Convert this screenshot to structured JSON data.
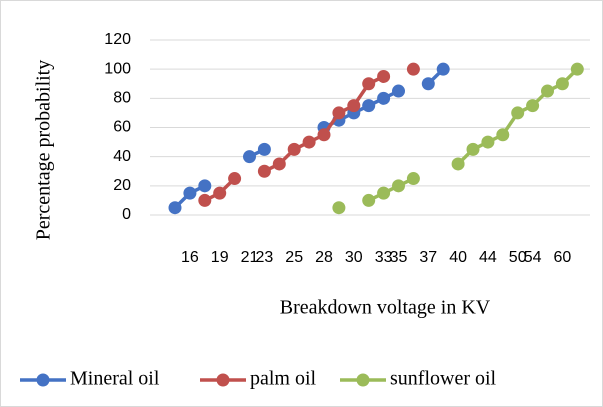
{
  "chart_data": {
    "type": "line",
    "x_label": "Breakdown voltage in KV",
    "y_label": "Percentage probability",
    "categories": [
      null,
      "16",
      null,
      "19",
      null,
      "21",
      "23",
      null,
      "25",
      null,
      "28",
      null,
      "30",
      null,
      "33",
      "35",
      null,
      "37",
      null,
      "40",
      null,
      "44",
      null,
      "50",
      "54",
      null,
      "60",
      null
    ],
    "series": [
      {
        "name": "Mineral oil",
        "color": "#4472c4",
        "values": [
          5,
          15,
          20,
          null,
          null,
          40,
          45,
          null,
          null,
          null,
          60,
          65,
          70,
          75,
          80,
          85,
          null,
          90,
          100,
          null,
          null,
          null,
          null,
          null,
          null,
          null,
          null,
          null
        ]
      },
      {
        "name": "palm oil",
        "color": "#c0504d",
        "values": [
          null,
          null,
          10,
          15,
          25,
          null,
          30,
          35,
          45,
          50,
          55,
          70,
          75,
          90,
          95,
          null,
          100,
          null,
          null,
          null,
          null,
          null,
          null,
          null,
          null,
          null,
          null,
          null
        ]
      },
      {
        "name": "sunflower oil",
        "color": "#9bbb59",
        "values": [
          null,
          null,
          null,
          null,
          null,
          null,
          null,
          null,
          null,
          null,
          null,
          5,
          null,
          10,
          15,
          20,
          25,
          null,
          null,
          35,
          45,
          50,
          55,
          70,
          75,
          85,
          90,
          100
        ]
      }
    ],
    "ylim": [
      0,
      120
    ],
    "yticks": [
      0,
      20,
      40,
      60,
      80,
      100,
      120
    ],
    "grid": true,
    "legend": "bottom"
  }
}
